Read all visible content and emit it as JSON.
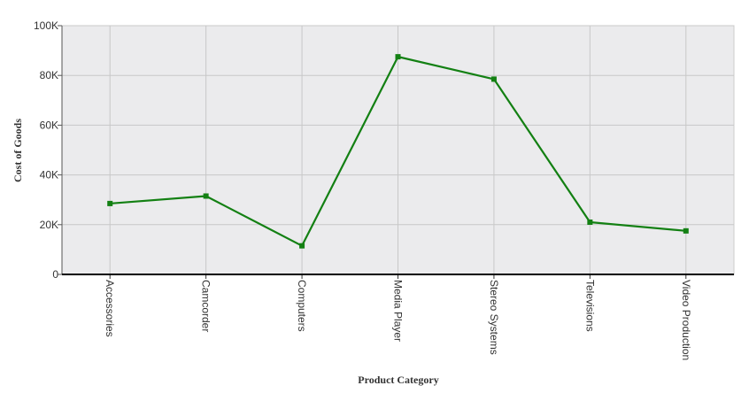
{
  "chart_data": {
    "type": "line",
    "xlabel": "Product Category",
    "ylabel": "Cost of Goods",
    "categories": [
      "Accessories",
      "Camcorder",
      "Computers",
      "Media Player",
      "Stereo Systems",
      "Televisions",
      "Video Production"
    ],
    "series": [
      {
        "values": [
          28500,
          31500,
          11500,
          87500,
          78500,
          21000,
          17500
        ],
        "color": "#138013"
      }
    ],
    "ylim": [
      0,
      100000
    ],
    "y_ticks": [
      0,
      20000,
      40000,
      60000,
      80000,
      100000
    ],
    "y_tick_labels": [
      "0",
      "20K",
      "40K",
      "60K",
      "80K",
      "100K"
    ],
    "grid": true,
    "marker": "square",
    "plot_background": "#ebebed",
    "grid_color": "#c8c8c8"
  }
}
